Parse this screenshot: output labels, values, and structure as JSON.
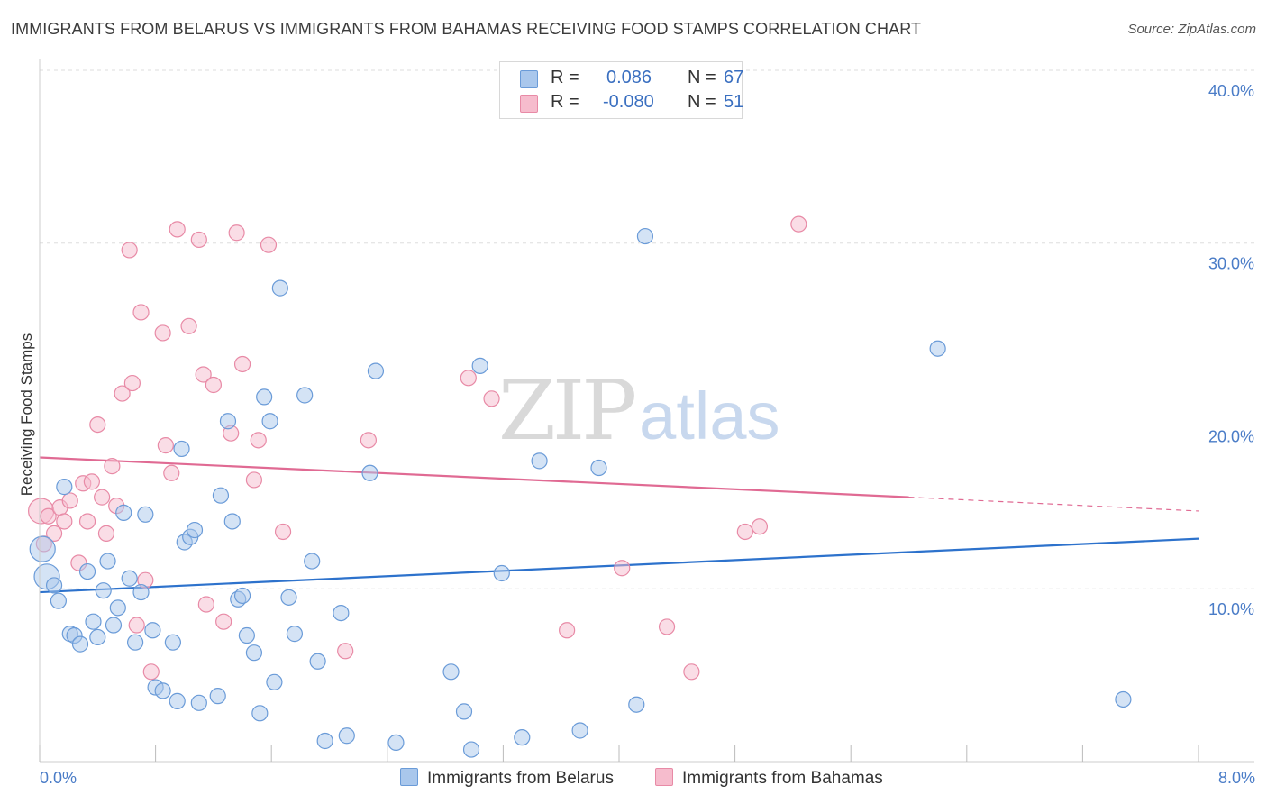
{
  "title": "IMMIGRANTS FROM BELARUS VS IMMIGRANTS FROM BAHAMAS RECEIVING FOOD STAMPS CORRELATION CHART",
  "source": "Source: ZipAtlas.com",
  "watermark": {
    "zip": "ZIP",
    "atlas": "atlas"
  },
  "legend": {
    "r_label": "R =",
    "n_label": "N =",
    "rows": [
      {
        "r": "0.086",
        "n": "67"
      },
      {
        "r": "-0.080",
        "n": "51"
      }
    ]
  },
  "colors": {
    "belarus_fill": "#a9c7ec",
    "belarus_stroke": "#6a9bd8",
    "belarus_line": "#2d72cc",
    "bahamas_fill": "#f6bccd",
    "bahamas_stroke": "#e88aa6",
    "bahamas_line": "#e06a93",
    "grid": "#dddddd",
    "axis_text": "#4a7cc7"
  },
  "chart_data": {
    "type": "scatter",
    "title": "IMMIGRANTS FROM BELARUS VS IMMIGRANTS FROM BAHAMAS RECEIVING FOOD STAMPS CORRELATION CHART",
    "xlabel": "",
    "ylabel": "Receiving Food Stamps",
    "xlim": [
      0,
      8
    ],
    "ylim": [
      0,
      40
    ],
    "x_tick_labels": [
      "0.0%",
      "8.0%"
    ],
    "y_ticks": [
      10,
      20,
      30,
      40
    ],
    "y_tick_labels": [
      "10.0%",
      "20.0%",
      "30.0%",
      "40.0%"
    ],
    "grid": true,
    "series": [
      {
        "name": "Immigrants from Belarus",
        "r": 0.086,
        "n": 67,
        "trend": {
          "x0": 0,
          "y0": 9.8,
          "x1": 8,
          "y1": 12.9
        },
        "points": [
          {
            "x": 0.02,
            "y": 12.3,
            "big": true
          },
          {
            "x": 0.05,
            "y": 10.7,
            "big": true
          },
          {
            "x": 0.1,
            "y": 10.2
          },
          {
            "x": 0.13,
            "y": 9.3
          },
          {
            "x": 0.17,
            "y": 15.9
          },
          {
            "x": 0.21,
            "y": 7.4
          },
          {
            "x": 0.24,
            "y": 7.3
          },
          {
            "x": 0.28,
            "y": 6.8
          },
          {
            "x": 0.33,
            "y": 11.0
          },
          {
            "x": 0.37,
            "y": 8.1
          },
          {
            "x": 0.4,
            "y": 7.2
          },
          {
            "x": 0.44,
            "y": 9.9
          },
          {
            "x": 0.47,
            "y": 11.6
          },
          {
            "x": 0.51,
            "y": 7.9
          },
          {
            "x": 0.54,
            "y": 8.9
          },
          {
            "x": 0.58,
            "y": 14.4
          },
          {
            "x": 0.62,
            "y": 10.6
          },
          {
            "x": 0.66,
            "y": 6.9
          },
          {
            "x": 0.7,
            "y": 9.8
          },
          {
            "x": 0.73,
            "y": 14.3
          },
          {
            "x": 0.78,
            "y": 7.6
          },
          {
            "x": 0.8,
            "y": 4.3
          },
          {
            "x": 0.85,
            "y": 4.1
          },
          {
            "x": 0.92,
            "y": 6.9
          },
          {
            "x": 0.95,
            "y": 3.5
          },
          {
            "x": 0.98,
            "y": 18.1
          },
          {
            "x": 1.0,
            "y": 12.7
          },
          {
            "x": 1.04,
            "y": 13.0
          },
          {
            "x": 1.07,
            "y": 13.4
          },
          {
            "x": 1.1,
            "y": 3.4
          },
          {
            "x": 1.23,
            "y": 3.8
          },
          {
            "x": 1.25,
            "y": 15.4
          },
          {
            "x": 1.3,
            "y": 19.7
          },
          {
            "x": 1.33,
            "y": 13.9
          },
          {
            "x": 1.37,
            "y": 9.4
          },
          {
            "x": 1.4,
            "y": 9.6
          },
          {
            "x": 1.43,
            "y": 7.3
          },
          {
            "x": 1.48,
            "y": 6.3
          },
          {
            "x": 1.52,
            "y": 2.8
          },
          {
            "x": 1.55,
            "y": 21.1
          },
          {
            "x": 1.59,
            "y": 19.7
          },
          {
            "x": 1.62,
            "y": 4.6
          },
          {
            "x": 1.66,
            "y": 27.4
          },
          {
            "x": 1.72,
            "y": 9.5
          },
          {
            "x": 1.76,
            "y": 7.4
          },
          {
            "x": 1.83,
            "y": 21.2
          },
          {
            "x": 1.88,
            "y": 11.6
          },
          {
            "x": 1.92,
            "y": 5.8
          },
          {
            "x": 1.97,
            "y": 1.2
          },
          {
            "x": 2.08,
            "y": 8.6
          },
          {
            "x": 2.12,
            "y": 1.5
          },
          {
            "x": 2.28,
            "y": 16.7
          },
          {
            "x": 2.32,
            "y": 22.6
          },
          {
            "x": 2.46,
            "y": 1.1
          },
          {
            "x": 2.84,
            "y": 5.2
          },
          {
            "x": 2.93,
            "y": 2.9
          },
          {
            "x": 2.98,
            "y": 0.7
          },
          {
            "x": 3.04,
            "y": 22.9
          },
          {
            "x": 3.19,
            "y": 10.9
          },
          {
            "x": 3.33,
            "y": 1.4
          },
          {
            "x": 3.45,
            "y": 17.4
          },
          {
            "x": 3.73,
            "y": 1.8
          },
          {
            "x": 3.86,
            "y": 17.0
          },
          {
            "x": 4.12,
            "y": 3.3
          },
          {
            "x": 4.18,
            "y": 30.4
          },
          {
            "x": 6.2,
            "y": 23.9
          },
          {
            "x": 7.48,
            "y": 3.6
          }
        ]
      },
      {
        "name": "Immigrants from Bahamas",
        "r": -0.08,
        "n": 51,
        "trend": {
          "x0": 0,
          "y0": 17.6,
          "x1": 6.0,
          "y1": 15.3,
          "dash_x1": 8,
          "dash_y1": 14.5
        },
        "points": [
          {
            "x": 0.01,
            "y": 14.5,
            "big": true
          },
          {
            "x": 0.03,
            "y": 12.6
          },
          {
            "x": 0.06,
            "y": 14.2
          },
          {
            "x": 0.1,
            "y": 13.2
          },
          {
            "x": 0.14,
            "y": 14.7
          },
          {
            "x": 0.17,
            "y": 13.9
          },
          {
            "x": 0.21,
            "y": 15.1
          },
          {
            "x": 0.27,
            "y": 11.5
          },
          {
            "x": 0.3,
            "y": 16.1
          },
          {
            "x": 0.33,
            "y": 13.9
          },
          {
            "x": 0.36,
            "y": 16.2
          },
          {
            "x": 0.4,
            "y": 19.5
          },
          {
            "x": 0.43,
            "y": 15.3
          },
          {
            "x": 0.46,
            "y": 13.2
          },
          {
            "x": 0.5,
            "y": 17.1
          },
          {
            "x": 0.53,
            "y": 14.8
          },
          {
            "x": 0.57,
            "y": 21.3
          },
          {
            "x": 0.62,
            "y": 29.6
          },
          {
            "x": 0.64,
            "y": 21.9
          },
          {
            "x": 0.67,
            "y": 7.9
          },
          {
            "x": 0.7,
            "y": 26.0
          },
          {
            "x": 0.73,
            "y": 10.5
          },
          {
            "x": 0.77,
            "y": 5.2
          },
          {
            "x": 0.85,
            "y": 24.8
          },
          {
            "x": 0.87,
            "y": 18.3
          },
          {
            "x": 0.91,
            "y": 16.7
          },
          {
            "x": 0.95,
            "y": 30.8
          },
          {
            "x": 1.03,
            "y": 25.2
          },
          {
            "x": 1.1,
            "y": 30.2
          },
          {
            "x": 1.13,
            "y": 22.4
          },
          {
            "x": 1.15,
            "y": 9.1
          },
          {
            "x": 1.2,
            "y": 21.8
          },
          {
            "x": 1.27,
            "y": 8.1
          },
          {
            "x": 1.32,
            "y": 19.0
          },
          {
            "x": 1.36,
            "y": 30.6
          },
          {
            "x": 1.4,
            "y": 23.0
          },
          {
            "x": 1.48,
            "y": 16.3
          },
          {
            "x": 1.51,
            "y": 18.6
          },
          {
            "x": 1.58,
            "y": 29.9
          },
          {
            "x": 1.68,
            "y": 13.3
          },
          {
            "x": 2.11,
            "y": 6.4
          },
          {
            "x": 2.27,
            "y": 18.6
          },
          {
            "x": 2.96,
            "y": 22.2
          },
          {
            "x": 3.12,
            "y": 21.0
          },
          {
            "x": 3.64,
            "y": 7.6
          },
          {
            "x": 4.02,
            "y": 11.2
          },
          {
            "x": 4.33,
            "y": 7.8
          },
          {
            "x": 4.5,
            "y": 5.2
          },
          {
            "x": 4.87,
            "y": 13.3
          },
          {
            "x": 4.97,
            "y": 13.6
          },
          {
            "x": 5.24,
            "y": 31.1
          }
        ]
      }
    ]
  }
}
